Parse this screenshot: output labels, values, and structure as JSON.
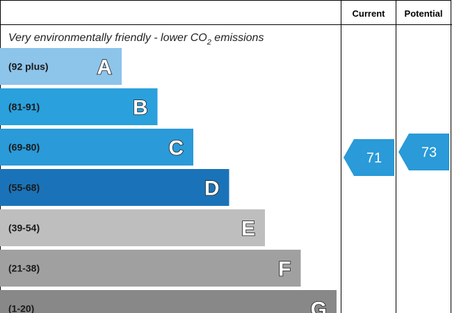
{
  "chart_data": {
    "type": "bar",
    "headers": {
      "current": "Current",
      "potential": "Potential"
    },
    "subtitle_prefix": "Very environmentally friendly - lower CO",
    "subtitle_sub": "2",
    "subtitle_suffix": " emissions",
    "bands": [
      {
        "letter": "A",
        "range": "(92 plus)",
        "color": "#8dc4ea",
        "order": 1
      },
      {
        "letter": "B",
        "range": "(81-91)",
        "color": "#2aa0dc",
        "order": 2
      },
      {
        "letter": "C",
        "range": "(69-80)",
        "color": "#2a9ad8",
        "order": 3
      },
      {
        "letter": "D",
        "range": "(55-68)",
        "color": "#1a73b8",
        "order": 4
      },
      {
        "letter": "E",
        "range": "(39-54)",
        "color": "#bebebe",
        "order": 5
      },
      {
        "letter": "F",
        "range": "(21-38)",
        "color": "#a0a0a0",
        "order": 6
      },
      {
        "letter": "G",
        "range": "(1-20)",
        "color": "#888888",
        "order": 7
      }
    ],
    "current": {
      "value": 71,
      "band": "C",
      "color": "#2a9ad8"
    },
    "potential": {
      "value": 73,
      "band": "C",
      "color": "#2a9ad8"
    }
  }
}
